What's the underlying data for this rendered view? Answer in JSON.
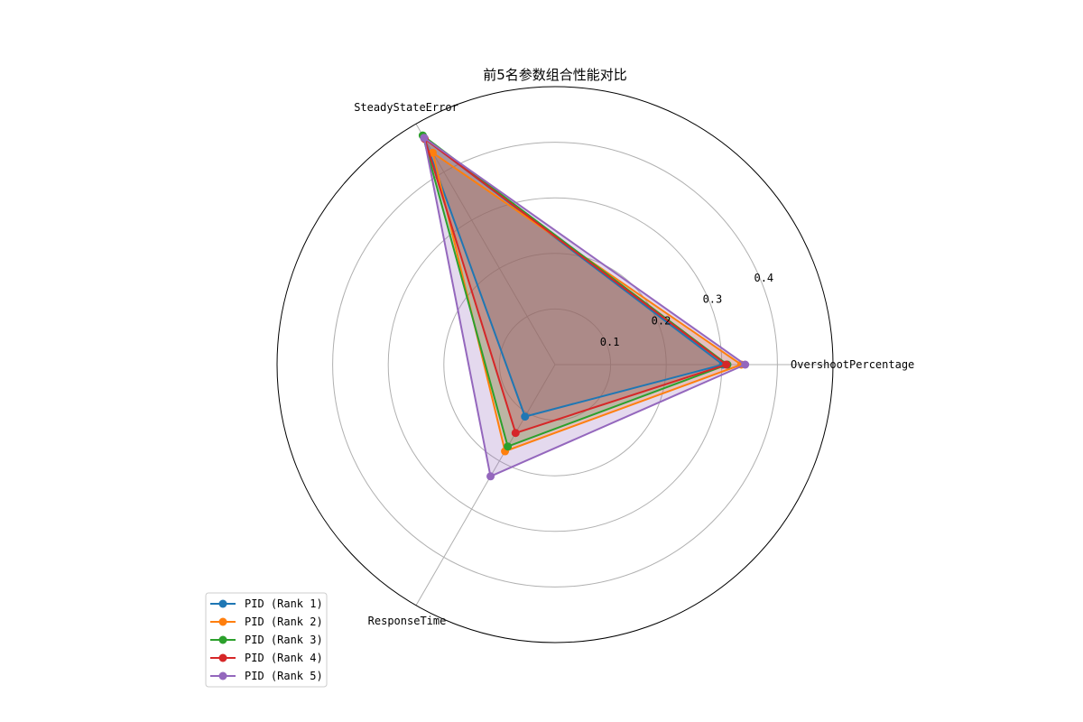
{
  "chart_data": {
    "type": "radar",
    "title": "前5名参数组合性能对比",
    "axes": [
      "OvershootPercentage",
      "SteadyStateError",
      "ResponseTime"
    ],
    "rlim": [
      0,
      0.5
    ],
    "rticks": [
      0.1,
      0.2,
      0.3,
      0.4
    ],
    "rtick_labels": [
      "0.1",
      "0.2",
      "0.3",
      "0.4"
    ],
    "grid": true,
    "legend_position": "lower-left",
    "series": [
      {
        "name": "PID (Rank 1)",
        "color": "#1f77b4",
        "values": [
          0.302,
          0.47,
          0.108
        ]
      },
      {
        "name": "PID (Rank 2)",
        "color": "#ff7f0e",
        "values": [
          0.335,
          0.44,
          0.18
        ]
      },
      {
        "name": "PID (Rank 3)",
        "color": "#2ca02c",
        "values": [
          0.31,
          0.476,
          0.17
        ]
      },
      {
        "name": "PID (Rank 4)",
        "color": "#d62728",
        "values": [
          0.308,
          0.469,
          0.142
        ]
      },
      {
        "name": "PID (Rank 5)",
        "color": "#9467bd",
        "values": [
          0.342,
          0.471,
          0.232
        ]
      }
    ]
  }
}
